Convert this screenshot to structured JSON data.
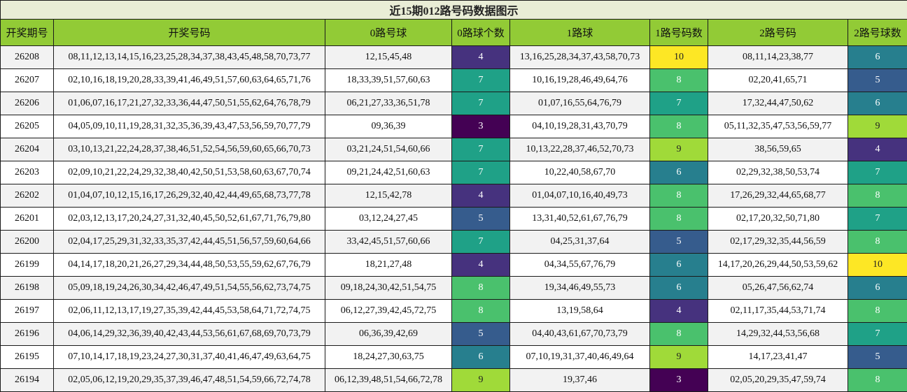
{
  "title": "近15期012路号码数据图示",
  "headers": [
    "开奖期号",
    "开奖号码",
    "0路号球",
    "0路球个数",
    "1路球",
    "1路号码数",
    "2路号码",
    "2路号球数"
  ],
  "colors": {
    "3": "#440154",
    "4": "#46327e",
    "5": "#365c8d",
    "6": "#277f8e",
    "7": "#1fa187",
    "8": "#4ac16d",
    "9": "#a0da39",
    "10": "#fde725"
  },
  "rows": [
    {
      "issue": "26208",
      "numbers": "08,11,12,13,14,15,16,23,25,28,34,37,38,43,45,48,58,70,73,77",
      "r0": "12,15,45,48",
      "c0": "4",
      "r1": "13,16,25,28,34,37,43,58,70,73",
      "c1": "10",
      "r2": "08,11,14,23,38,77",
      "c2": "6"
    },
    {
      "issue": "26207",
      "numbers": "02,10,16,18,19,20,28,33,39,41,46,49,51,57,60,63,64,65,71,76",
      "r0": "18,33,39,51,57,60,63",
      "c0": "7",
      "r1": "10,16,19,28,46,49,64,76",
      "c1": "8",
      "r2": "02,20,41,65,71",
      "c2": "5"
    },
    {
      "issue": "26206",
      "numbers": "01,06,07,16,17,21,27,32,33,36,44,47,50,51,55,62,64,76,78,79",
      "r0": "06,21,27,33,36,51,78",
      "c0": "7",
      "r1": "01,07,16,55,64,76,79",
      "c1": "7",
      "r2": "17,32,44,47,50,62",
      "c2": "6"
    },
    {
      "issue": "26205",
      "numbers": "04,05,09,10,11,19,28,31,32,35,36,39,43,47,53,56,59,70,77,79",
      "r0": "09,36,39",
      "c0": "3",
      "r1": "04,10,19,28,31,43,70,79",
      "c1": "8",
      "r2": "05,11,32,35,47,53,56,59,77",
      "c2": "9"
    },
    {
      "issue": "26204",
      "numbers": "03,10,13,21,22,24,28,37,38,46,51,52,54,56,59,60,65,66,70,73",
      "r0": "03,21,24,51,54,60,66",
      "c0": "7",
      "r1": "10,13,22,28,37,46,52,70,73",
      "c1": "9",
      "r2": "38,56,59,65",
      "c2": "4"
    },
    {
      "issue": "26203",
      "numbers": "02,09,10,21,22,24,29,32,38,40,42,50,51,53,58,60,63,67,70,74",
      "r0": "09,21,24,42,51,60,63",
      "c0": "7",
      "r1": "10,22,40,58,67,70",
      "c1": "6",
      "r2": "02,29,32,38,50,53,74",
      "c2": "7"
    },
    {
      "issue": "26202",
      "numbers": "01,04,07,10,12,15,16,17,26,29,32,40,42,44,49,65,68,73,77,78",
      "r0": "12,15,42,78",
      "c0": "4",
      "r1": "01,04,07,10,16,40,49,73",
      "c1": "8",
      "r2": "17,26,29,32,44,65,68,77",
      "c2": "8"
    },
    {
      "issue": "26201",
      "numbers": "02,03,12,13,17,20,24,27,31,32,40,45,50,52,61,67,71,76,79,80",
      "r0": "03,12,24,27,45",
      "c0": "5",
      "r1": "13,31,40,52,61,67,76,79",
      "c1": "8",
      "r2": "02,17,20,32,50,71,80",
      "c2": "7"
    },
    {
      "issue": "26200",
      "numbers": "02,04,17,25,29,31,32,33,35,37,42,44,45,51,56,57,59,60,64,66",
      "r0": "33,42,45,51,57,60,66",
      "c0": "7",
      "r1": "04,25,31,37,64",
      "c1": "5",
      "r2": "02,17,29,32,35,44,56,59",
      "c2": "8"
    },
    {
      "issue": "26199",
      "numbers": "04,14,17,18,20,21,26,27,29,34,44,48,50,53,55,59,62,67,76,79",
      "r0": "18,21,27,48",
      "c0": "4",
      "r1": "04,34,55,67,76,79",
      "c1": "6",
      "r2": "14,17,20,26,29,44,50,53,59,62",
      "c2": "10"
    },
    {
      "issue": "26198",
      "numbers": "05,09,18,19,24,26,30,34,42,46,47,49,51,54,55,56,62,73,74,75",
      "r0": "09,18,24,30,42,51,54,75",
      "c0": "8",
      "r1": "19,34,46,49,55,73",
      "c1": "6",
      "r2": "05,26,47,56,62,74",
      "c2": "6"
    },
    {
      "issue": "26197",
      "numbers": "02,06,11,12,13,17,19,27,35,39,42,44,45,53,58,64,71,72,74,75",
      "r0": "06,12,27,39,42,45,72,75",
      "c0": "8",
      "r1": "13,19,58,64",
      "c1": "4",
      "r2": "02,11,17,35,44,53,71,74",
      "c2": "8"
    },
    {
      "issue": "26196",
      "numbers": "04,06,14,29,32,36,39,40,42,43,44,53,56,61,67,68,69,70,73,79",
      "r0": "06,36,39,42,69",
      "c0": "5",
      "r1": "04,40,43,61,67,70,73,79",
      "c1": "8",
      "r2": "14,29,32,44,53,56,68",
      "c2": "7"
    },
    {
      "issue": "26195",
      "numbers": "07,10,14,17,18,19,23,24,27,30,31,37,40,41,46,47,49,63,64,75",
      "r0": "18,24,27,30,63,75",
      "c0": "6",
      "r1": "07,10,19,31,37,40,46,49,64",
      "c1": "9",
      "r2": "14,17,23,41,47",
      "c2": "5"
    },
    {
      "issue": "26194",
      "numbers": "02,05,06,12,19,20,29,35,37,39,46,47,48,51,54,59,66,72,74,78",
      "r0": "06,12,39,48,51,54,66,72,78",
      "c0": "9",
      "r1": "19,37,46",
      "c1": "3",
      "r2": "02,05,20,29,35,47,59,74",
      "c2": "8"
    }
  ]
}
